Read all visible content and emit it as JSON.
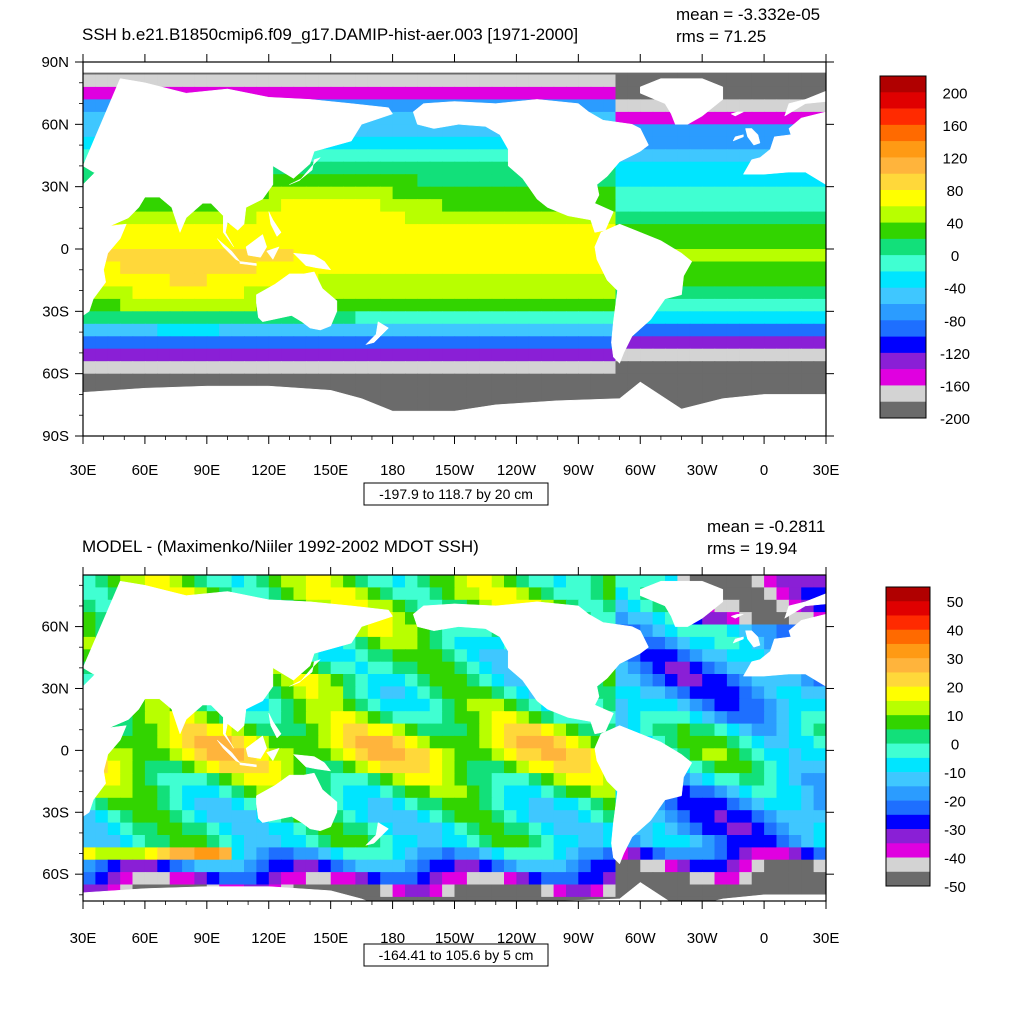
{
  "colors": {
    "ocean_scale": [
      "#6b6b6b",
      "#d3d3d3",
      "#e000e0",
      "#8a1fd6",
      "#0000ff",
      "#1e6fff",
      "#2b9cff",
      "#3fc7ff",
      "#00e5ff",
      "#40ffd2",
      "#12e07a",
      "#32d400",
      "#b8ff00",
      "#ffff00",
      "#ffd83a",
      "#ffb43c",
      "#ff9a14",
      "#ff6a00",
      "#ff2a00",
      "#e00000",
      "#b00000"
    ],
    "land": "#ffffff",
    "frame": "#000000"
  },
  "chart_data": [
    {
      "type": "heatmap",
      "title": "SSH b.e21.B1850cmip6.f09_g17.DAMIP-hist-aer.003 [1971-2000]",
      "stats": [
        "mean = -3.332e-05",
        "rms = 71.25"
      ],
      "x_ticks": [
        "30E",
        "60E",
        "90E",
        "120E",
        "150E",
        "180",
        "150W",
        "120W",
        "90W",
        "60W",
        "30W",
        "0",
        "30E"
      ],
      "y_ticks": [
        "90N",
        "60N",
        "30N",
        "0",
        "30S",
        "60S",
        "90S"
      ],
      "xlim": [
        30,
        390
      ],
      "ylim": [
        -90,
        90
      ],
      "contour_info": "-197.9 to 118.7 by 20 cm",
      "colorbar_labels": [
        "200",
        "160",
        "120",
        "80",
        "40",
        "0",
        "-40",
        "-80",
        "-120",
        "-160",
        "-200"
      ],
      "colorbar_range": [
        -200,
        200
      ]
    },
    {
      "type": "heatmap",
      "title": "MODEL - (Maximenko/Niiler 1992-2002 MDOT SSH)",
      "stats": [
        "mean = -0.2811",
        "rms = 19.94"
      ],
      "x_ticks": [
        "30E",
        "60E",
        "90E",
        "120E",
        "150E",
        "180",
        "150W",
        "120W",
        "90W",
        "60W",
        "30W",
        "0",
        "30E"
      ],
      "y_ticks": [
        "60N",
        "30N",
        "0",
        "30S",
        "60S"
      ],
      "xlim": [
        30,
        390
      ],
      "ylim": [
        -73,
        85
      ],
      "contour_info": "-164.41 to 105.6 by 5 cm",
      "colorbar_labels": [
        "50",
        "40",
        "30",
        "20",
        "10",
        "0",
        "-10",
        "-20",
        "-30",
        "-40",
        "-50"
      ],
      "colorbar_range": [
        -50,
        50
      ]
    }
  ]
}
